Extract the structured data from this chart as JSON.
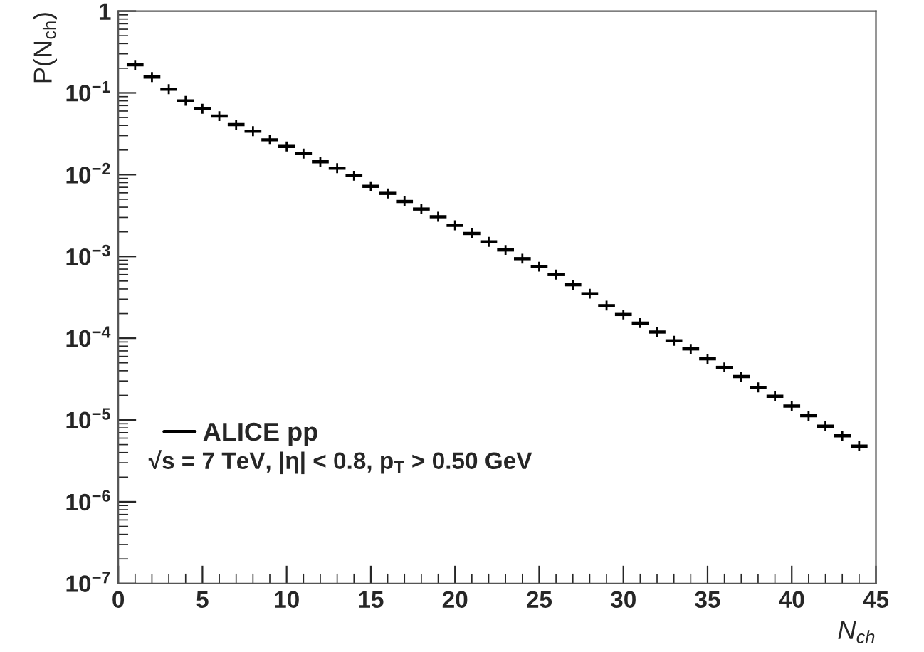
{
  "chart_data": {
    "type": "scatter",
    "xlabel": "N$_{ch}$",
    "ylabel": "P(N$_{ch}$)",
    "x": [
      1,
      2,
      3,
      4,
      5,
      6,
      7,
      8,
      9,
      10,
      11,
      12,
      13,
      14,
      15,
      16,
      17,
      18,
      19,
      20,
      21,
      22,
      23,
      24,
      25,
      26,
      27,
      28,
      29,
      30,
      31,
      32,
      33,
      34,
      35,
      36,
      37,
      38,
      39,
      40,
      41,
      42,
      43,
      44
    ],
    "series": [
      {
        "name": "ALICE pp",
        "color": "#000000",
        "values": [
          0.22,
          0.156,
          0.111,
          0.08,
          0.064,
          0.052,
          0.041,
          0.034,
          0.0267,
          0.0221,
          0.0181,
          0.0144,
          0.012,
          0.0097,
          0.0072,
          0.0059,
          0.0047,
          0.0038,
          0.00306,
          0.0024,
          0.00191,
          0.00151,
          0.0012,
          0.00094,
          0.00075,
          0.0006,
          0.00045,
          0.00035,
          0.00025,
          0.000195,
          0.000153,
          0.000119,
          9.3e-05,
          7.4e-05,
          5.6e-05,
          4.4e-05,
          3.4e-05,
          2.5e-05,
          1.95e-05,
          1.48e-05,
          1.13e-05,
          8.4e-06,
          6.4e-06,
          4.8e-06
        ],
        "xerrors": [
          0.5,
          0.5,
          0.5,
          0.5,
          0.5,
          0.5,
          0.5,
          0.5,
          0.5,
          0.5,
          0.5,
          0.5,
          0.5,
          0.5,
          0.5,
          0.5,
          0.5,
          0.5,
          0.5,
          0.5,
          0.5,
          0.5,
          0.5,
          0.5,
          0.5,
          0.5,
          0.5,
          0.5,
          0.5,
          0.5,
          0.5,
          0.5,
          0.5,
          0.5,
          0.5,
          0.5,
          0.5,
          0.5,
          0.5,
          0.5,
          0.5,
          0.5,
          0.5,
          0.5
        ]
      }
    ],
    "marker": "cross",
    "log": "y",
    "legend": "bottom left",
    "grid": false,
    "annotations": [
      "√s = 7 TeV, |η| < 0.8, p$_{T}$ > 0.50 GeV"
    ],
    "xlim": [
      0,
      45
    ],
    "xticks": [
      0,
      5,
      10,
      15,
      20,
      25,
      30,
      35,
      40,
      45
    ],
    "ylim": [
      1e-07,
      1
    ],
    "yticks": [
      {
        "value": 1e-07,
        "label": "10$^{−7}$"
      },
      {
        "value": 1e-06,
        "label": "10$^{−6}$"
      },
      {
        "value": 1e-05,
        "label": "10$^{−5}$"
      },
      {
        "value": 0.0001,
        "label": "10$^{−4}$"
      },
      {
        "value": 0.001,
        "label": "10$^{−3}$"
      },
      {
        "value": 0.01,
        "label": "10$^{−2}$"
      },
      {
        "value": 0.1,
        "label": "10$^{−1}$"
      },
      1
    ]
  }
}
